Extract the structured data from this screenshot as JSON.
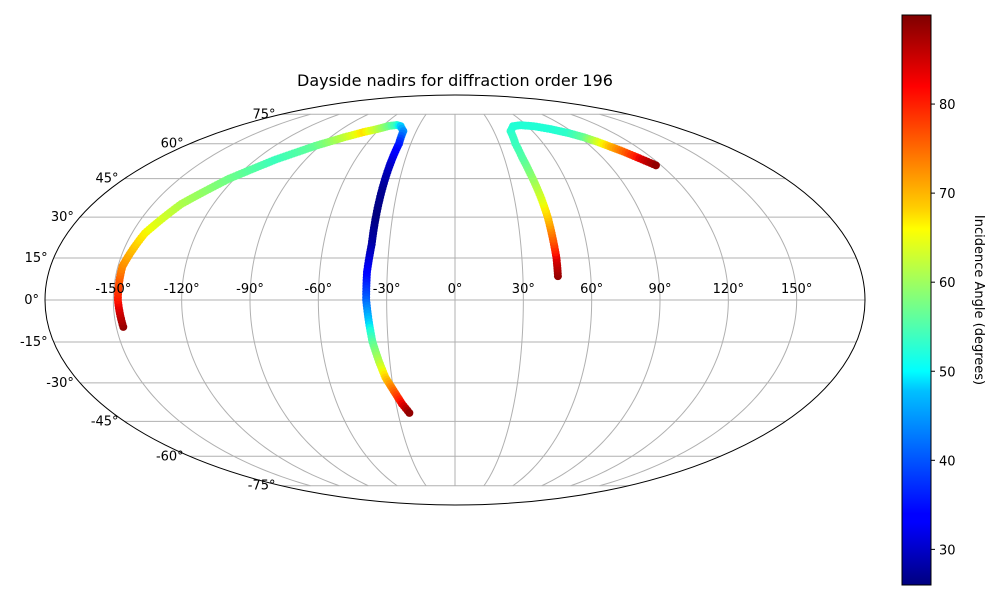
{
  "chart_data": {
    "type": "scatter",
    "projection": "mollweide",
    "title": "Dayside nadirs for diffraction order 196",
    "grid": true,
    "longitude_ticks": [
      "-150°",
      "-120°",
      "-90°",
      "-60°",
      "-30°",
      "0°",
      "30°",
      "60°",
      "90°",
      "120°",
      "150°"
    ],
    "longitude_tick_values": [
      -150,
      -120,
      -90,
      -60,
      -30,
      0,
      30,
      60,
      90,
      120,
      150
    ],
    "latitude_ticks": [
      "75°",
      "60°",
      "45°",
      "30°",
      "15°",
      "0°",
      "-15°",
      "-30°",
      "-45°",
      "-60°",
      "-75°"
    ],
    "latitude_tick_values": [
      75,
      60,
      45,
      30,
      15,
      0,
      -15,
      -30,
      -45,
      -60,
      -75
    ],
    "colorbar": {
      "label": "Incidence Angle (degrees)",
      "colormap": "jet",
      "range": [
        26,
        90
      ],
      "ticks": [
        "30",
        "40",
        "50",
        "60",
        "70",
        "80"
      ],
      "tick_values": [
        30,
        40,
        50,
        60,
        70,
        80
      ]
    },
    "series": [
      {
        "tracks": [
          {
            "lon": -146.9,
            "lat": -9.6,
            "incidence": 89
          },
          {
            "lon": -148,
            "lat": 0,
            "incidence": 83
          },
          {
            "lon": -148,
            "lat": 12,
            "incidence": 75
          },
          {
            "lon": -144,
            "lat": 24,
            "incidence": 68
          },
          {
            "lon": -136,
            "lat": 35,
            "incidence": 62
          },
          {
            "lon": -123,
            "lat": 45,
            "incidence": 57
          },
          {
            "lon": -108,
            "lat": 53,
            "incidence": 53
          },
          {
            "lon": -93,
            "lat": 59,
            "incidence": 56
          },
          {
            "lon": -80,
            "lat": 63,
            "incidence": 63
          },
          {
            "lon": -70,
            "lat": 65.5,
            "incidence": 69
          },
          {
            "lon": -62,
            "lat": 67,
            "incidence": 63
          },
          {
            "lon": -55,
            "lat": 68.6,
            "incidence": 57
          },
          {
            "lon": -49,
            "lat": 69.1,
            "incidence": 52
          },
          {
            "lon": -45,
            "lat": 68.5,
            "incidence": 47
          }
        ]
      },
      {
        "tracks": [
          {
            "lon": -45,
            "lat": 68.5,
            "incidence": 47
          },
          {
            "lon": -40,
            "lat": 66,
            "incidence": 43
          },
          {
            "lon": -38,
            "lat": 60,
            "incidence": 36
          },
          {
            "lon": -38,
            "lat": 50,
            "incidence": 30
          },
          {
            "lon": -38,
            "lat": 40,
            "incidence": 27
          },
          {
            "lon": -38,
            "lat": 30,
            "incidence": 26
          },
          {
            "lon": -38,
            "lat": 20,
            "incidence": 28
          },
          {
            "lon": -39,
            "lat": 10,
            "incidence": 33
          },
          {
            "lon": -39,
            "lat": 0,
            "incidence": 40
          },
          {
            "lon": -38,
            "lat": -8,
            "incidence": 47
          },
          {
            "lon": -37,
            "lat": -15,
            "incidence": 55
          },
          {
            "lon": -35,
            "lat": -22,
            "incidence": 62
          },
          {
            "lon": -33,
            "lat": -28,
            "incidence": 70
          },
          {
            "lon": -30,
            "lat": -33,
            "incidence": 77
          },
          {
            "lon": -27,
            "lat": -38,
            "incidence": 84
          },
          {
            "lon": -24,
            "lat": -41.6,
            "incidence": 89
          }
        ]
      },
      {
        "tracks": [
          {
            "lon": 45.5,
            "lat": 8.5,
            "incidence": 89
          },
          {
            "lon": 45.5,
            "lat": 15,
            "incidence": 85
          },
          {
            "lon": 45,
            "lat": 22,
            "incidence": 78
          },
          {
            "lon": 44.5,
            "lat": 30,
            "incidence": 71
          },
          {
            "lon": 43.5,
            "lat": 38,
            "incidence": 65
          },
          {
            "lon": 42,
            "lat": 47,
            "incidence": 59
          },
          {
            "lon": 41,
            "lat": 54,
            "incidence": 55
          },
          {
            "lon": 41,
            "lat": 60,
            "incidence": 53
          },
          {
            "lon": 43,
            "lat": 66,
            "incidence": 52
          },
          {
            "lon": 48,
            "lat": 68.5,
            "incidence": 51
          },
          {
            "lon": 55,
            "lat": 69,
            "incidence": 51
          },
          {
            "lon": 65,
            "lat": 68.5,
            "incidence": 51
          },
          {
            "lon": 76,
            "lat": 67,
            "incidence": 51
          },
          {
            "lon": 86,
            "lat": 65,
            "incidence": 52
          },
          {
            "lon": 93,
            "lat": 63,
            "incidence": 56
          },
          {
            "lon": 98,
            "lat": 61,
            "incidence": 64
          },
          {
            "lon": 103,
            "lat": 58.5,
            "incidence": 72
          },
          {
            "lon": 107,
            "lat": 56.5,
            "incidence": 77
          },
          {
            "lon": 112,
            "lat": 53.5,
            "incidence": 84
          },
          {
            "lon": 117,
            "lat": 50.5,
            "incidence": 89
          }
        ]
      }
    ]
  }
}
